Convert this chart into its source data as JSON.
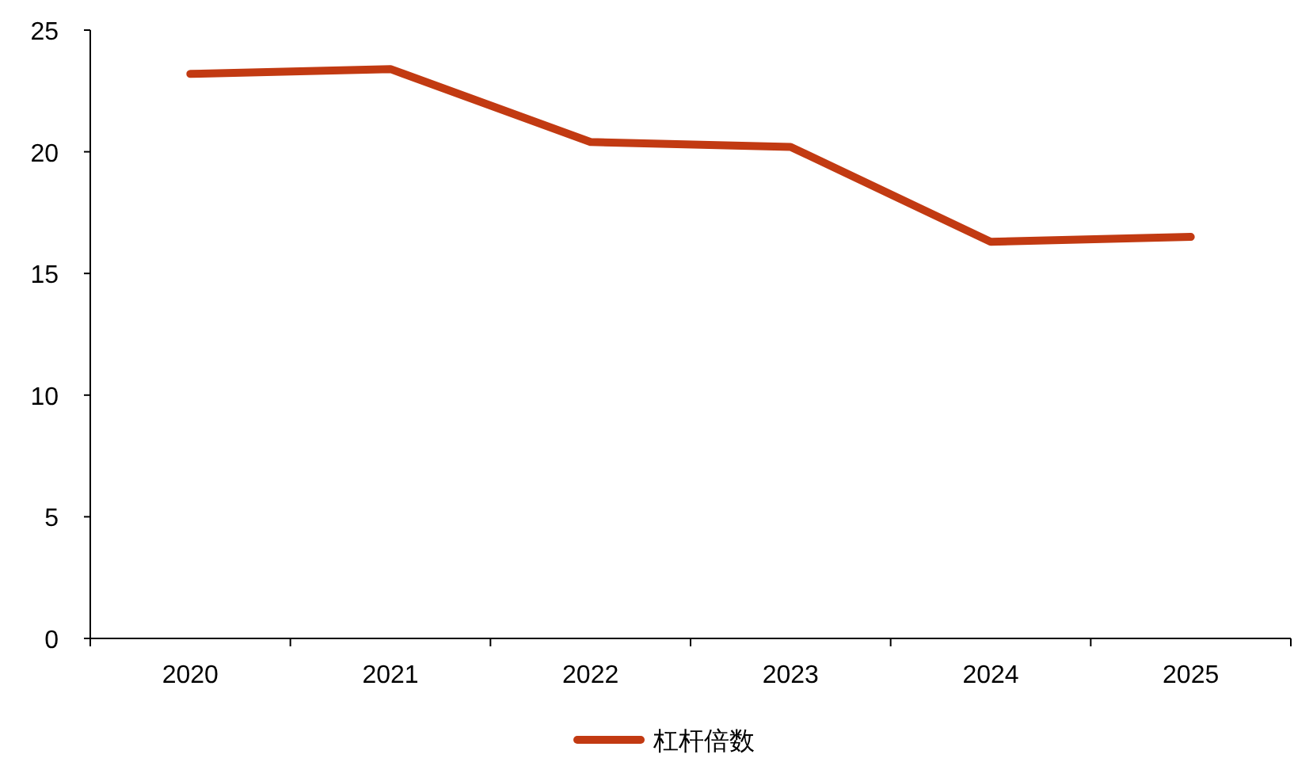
{
  "chart_data": {
    "type": "line",
    "categories": [
      "2020",
      "2021",
      "2022",
      "2023",
      "2024",
      "2025"
    ],
    "series": [
      {
        "name": "杠杆倍数",
        "color": "#c23a12",
        "values": [
          23.2,
          23.4,
          20.4,
          20.2,
          16.3,
          16.5
        ]
      }
    ],
    "ylim": [
      0,
      25
    ],
    "yticks": [
      0,
      5,
      10,
      15,
      20,
      25
    ],
    "legend": "bottom"
  }
}
